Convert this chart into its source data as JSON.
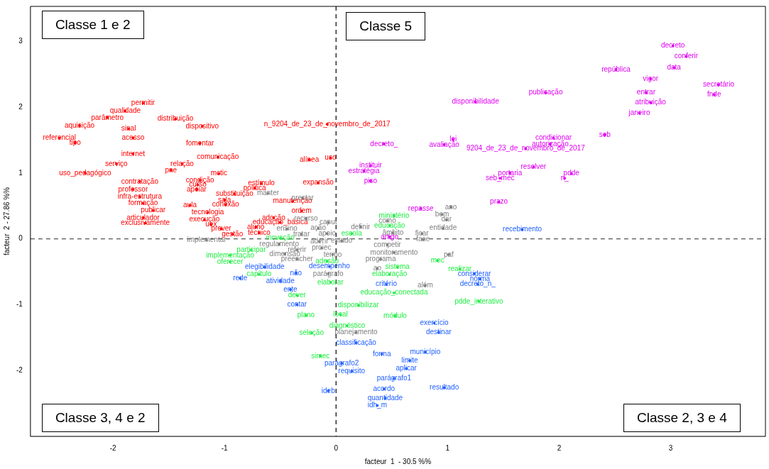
{
  "chart_data": {
    "type": "scatter",
    "xlabel": "facteur  1  - 30.5 %%",
    "ylabel": "facteur  2 - 27.86 %%",
    "xlim": [
      -2.74,
      3.85
    ],
    "ylim": [
      -3.0,
      3.53
    ],
    "xticks": [
      -2,
      -1,
      0,
      1,
      2,
      3
    ],
    "yticks": [
      -2,
      -1,
      0,
      1,
      2,
      3
    ],
    "grid": false,
    "legend": false,
    "marker": "circle",
    "ref_lines": [
      {
        "axis": "x",
        "value": 0,
        "line_style": "dashed",
        "color": "#000000"
      },
      {
        "axis": "y",
        "value": 0,
        "line_style": "dashed",
        "color": "#555555"
      }
    ],
    "annotations": [
      "Classe 1 e 2",
      "Classe 5",
      "Classe 3, 4 e 2",
      "Classe 2, 3 e 4"
    ],
    "series": [
      {
        "color": "#ff0000",
        "x": [
          -1.73,
          -1.89,
          -2.05,
          -1.44,
          -2.3,
          -1.86,
          -1.2,
          -2.48,
          -2.34,
          -1.82,
          -1.22,
          -1.82,
          -1.06,
          -1.97,
          -1.38,
          -2.25,
          -1.48,
          -1.05,
          -1.76,
          -1.22,
          -1.24,
          -1.82,
          -1.25,
          -0.67,
          -0.73,
          -1.76,
          -0.91,
          -1.0,
          -1.73,
          -1.31,
          -0.99,
          -1.15,
          -1.64,
          -1.73,
          -1.71,
          -1.18,
          -1.12,
          -1.03,
          -0.93,
          -0.24,
          -0.05,
          -0.16,
          -0.39,
          -0.31,
          -0.56,
          -0.5,
          -0.72,
          -0.69,
          -0.08
        ],
        "values": [
          2.06,
          1.94,
          1.84,
          1.82,
          1.72,
          1.67,
          1.71,
          1.53,
          1.46,
          1.53,
          1.45,
          1.29,
          1.24,
          1.14,
          1.14,
          1.0,
          1.04,
          0.99,
          0.87,
          0.89,
          0.82,
          0.75,
          0.75,
          0.84,
          0.77,
          0.64,
          0.68,
          0.59,
          0.54,
          0.51,
          0.52,
          0.4,
          0.43,
          0.32,
          0.24,
          0.29,
          0.22,
          0.15,
          0.07,
          1.2,
          1.23,
          0.85,
          0.57,
          0.42,
          0.32,
          0.25,
          0.18,
          0.09,
          1.74
        ],
        "value_labels": [
          "permitir",
          "qualidade",
          "parâmetro",
          "distribuição",
          "aquisição",
          "sinal",
          "dispositivo",
          "referencial",
          "tipo",
          "acesso",
          "fomentar",
          "internet",
          "comunicação",
          "serviço",
          "relação",
          "uso_pedagógico",
          "pne",
          "mctic",
          "contratação",
          "condição",
          "curso",
          "professor",
          "apoiar",
          "estímulo",
          "política",
          "infra-estrutura",
          "substituição",
          "sala",
          "formação",
          "aula",
          "conexão",
          "tecnologia",
          "publicar",
          "articulador",
          "exclusivamente",
          "execução",
          "uex",
          "prever",
          "gestão",
          "alínea",
          "uso",
          "expansão",
          "manutenção",
          "ordem",
          "adoção",
          "educação_básica",
          "aluno",
          "técnico",
          "n_9204_de_23_de_novembro_de_2017"
        ]
      },
      {
        "color": "#e000f0",
        "x": [
          3.02,
          3.14,
          2.51,
          3.03,
          2.82,
          3.43,
          1.88,
          2.78,
          3.39,
          2.82,
          1.25,
          2.72,
          2.41,
          1.95,
          1.92,
          1.05,
          0.97,
          1.7,
          0.43,
          0.31,
          0.25,
          0.31,
          1.77,
          1.56,
          2.11,
          1.47,
          2.05,
          1.46,
          0.76,
          0.48
        ],
        "values": [
          2.93,
          2.77,
          2.57,
          2.6,
          2.43,
          2.34,
          2.22,
          2.22,
          2.19,
          2.07,
          2.08,
          1.91,
          1.58,
          1.53,
          1.44,
          1.51,
          1.43,
          1.37,
          1.44,
          1.11,
          1.03,
          0.88,
          1.09,
          1.0,
          0.99,
          0.92,
          0.92,
          0.56,
          0.46,
          0.03
        ],
        "value_labels": [
          "decreto",
          "conferir",
          "república",
          "data",
          "vigor",
          "secretário",
          "publicação",
          "entrar",
          "fnde",
          "atribuição",
          "disponibilidade",
          "janeiro",
          "seb",
          "condicionar",
          "autorização",
          "lei",
          "avaliação",
          "9204_de_23_de_novembro_de_2017",
          "decreto_",
          "instituir",
          "estratégia",
          "piso",
          "resolver",
          "portaria",
          "pdde",
          "seb_mec",
          "n_",
          "prazo",
          "repasse",
          "artigo"
        ]
      },
      {
        "color": "#808080",
        "x": [
          -0.61,
          -0.3,
          -0.27,
          -0.07,
          -0.44,
          -0.16,
          -0.08,
          -0.31,
          -1.16,
          -0.51,
          -0.15,
          0.05,
          -0.35,
          -0.13,
          -0.46,
          -0.03,
          -0.35,
          -0.07,
          0.22,
          0.46,
          0.51,
          0.77,
          0.78,
          0.96,
          1.03,
          0.95,
          0.99,
          0.46,
          0.52,
          0.4,
          1.01,
          0.37,
          0.8,
          0.18
        ],
        "values": [
          0.69,
          0.62,
          0.31,
          0.25,
          0.15,
          0.16,
          0.08,
          0.07,
          -0.02,
          -0.08,
          -0.04,
          -0.03,
          -0.17,
          -0.14,
          -0.23,
          -0.24,
          -0.31,
          -0.53,
          0.18,
          0.27,
          0.09,
          0.08,
          -0.01,
          0.16,
          0.48,
          0.37,
          0.29,
          -0.09,
          -0.21,
          -0.31,
          -0.24,
          -0.45,
          -0.71,
          -1.42
        ],
        "value_labels": [
          "manter",
          "prestar",
          "recurso",
          "caput",
          "ensino",
          "ação",
          "apoio",
          "tratar",
          "implementar",
          "regulamento",
          "aderir",
          "estado",
          "referir",
          "proiec",
          "dimensão",
          "termo",
          "preencher",
          "parágrafo",
          "definir",
          "como",
          "âmbito",
          "ficar",
          "fase",
          "entidade",
          "ano",
          "bem",
          "dar",
          "competir",
          "monitoramento",
          "programa",
          "paf",
          "ao",
          "além",
          "planejamento"
        ]
      },
      {
        "color": "#22ee44",
        "x": [
          0.52,
          0.48,
          0.14,
          -0.5,
          -0.76,
          -0.95,
          -0.95,
          -0.69,
          -0.08,
          0.91,
          0.55,
          1.11,
          0.48,
          -0.05,
          -0.35,
          0.52,
          0.2,
          1.28,
          -0.27,
          0.04,
          0.53,
          0.1,
          -0.22,
          -0.14
        ],
        "values": [
          0.35,
          0.2,
          0.08,
          0.01,
          -0.17,
          -0.25,
          -0.35,
          -0.54,
          -0.34,
          -0.33,
          -0.43,
          -0.46,
          -0.54,
          -0.66,
          -0.86,
          -0.82,
          -1.01,
          -0.95,
          -1.16,
          -1.15,
          -1.17,
          -1.32,
          -1.43,
          -1.78
        ],
        "value_labels": [
          "ministério",
          "educação",
          "escola",
          "inovação",
          "participar",
          "implementação",
          "oferecer",
          "capítulo",
          "adesão",
          "mec",
          "sistema",
          "realizar",
          "elaboração",
          "elaborar",
          "dever",
          "educação_conectada",
          "disponibilizar",
          "pdde_interativo",
          "plano",
          "local",
          "módulo",
          "diagnóstico",
          "seleção",
          "simec"
        ]
      },
      {
        "color": "#2060ff",
        "x": [
          1.67,
          -0.06,
          -0.64,
          -0.36,
          -0.86,
          -0.5,
          1.24,
          1.29,
          1.27,
          -0.41,
          0.45,
          -0.35,
          0.88,
          0.92,
          0.18,
          0.41,
          0.8,
          0.66,
          0.05,
          0.63,
          0.14,
          0.52,
          -0.07,
          0.43,
          0.97,
          0.44,
          0.37
        ],
        "values": [
          0.14,
          -0.42,
          -0.43,
          -0.52,
          -0.6,
          -0.64,
          -0.53,
          -0.61,
          -0.69,
          -0.77,
          -0.69,
          -1.0,
          -1.28,
          -1.42,
          -1.58,
          -1.75,
          -1.72,
          -1.85,
          -1.89,
          -1.97,
          -2.01,
          -2.12,
          -2.31,
          -2.28,
          -2.26,
          -2.42,
          -2.53
        ],
        "value_labels": [
          "recebimento",
          "desempenho",
          "elegibilidade",
          "não",
          "rede",
          "atividade",
          "considerar",
          "norma",
          "decreto_n_",
          "ente",
          "critério",
          "contar",
          "exercício",
          "destinar",
          "classificação",
          "forma",
          "município",
          "limite",
          "parágrafo2",
          "aplicar",
          "requisito",
          "parágrafo1",
          "ideb",
          "acordo",
          "resultado",
          "quantidade",
          "idh_m"
        ]
      }
    ]
  }
}
